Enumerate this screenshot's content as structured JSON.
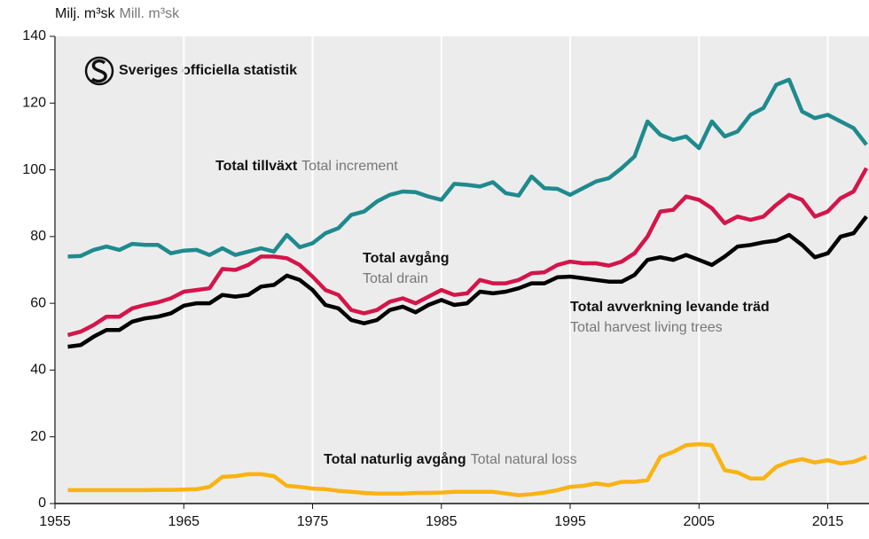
{
  "chart_data": {
    "type": "line",
    "unit_label": "Milj. m³sk",
    "unit_label_en": "Mill. m³sk",
    "logo": "Sveriges officiella statistik",
    "x": [
      1956,
      1957,
      1958,
      1959,
      1960,
      1961,
      1962,
      1963,
      1964,
      1965,
      1966,
      1967,
      1968,
      1969,
      1970,
      1971,
      1972,
      1973,
      1974,
      1975,
      1976,
      1977,
      1978,
      1979,
      1980,
      1981,
      1982,
      1983,
      1984,
      1985,
      1986,
      1987,
      1988,
      1989,
      1990,
      1991,
      1992,
      1993,
      1994,
      1995,
      1996,
      1997,
      1998,
      1999,
      2000,
      2001,
      2002,
      2003,
      2004,
      2005,
      2006,
      2007,
      2008,
      2009,
      2010,
      2011,
      2012,
      2013,
      2014,
      2015,
      2016,
      2017,
      2018
    ],
    "series": [
      {
        "name": "Total tillväxt",
        "name_en": "Total increment",
        "color": "#1f8a8e",
        "values": [
          74,
          74.2,
          76,
          77,
          76,
          77.8,
          77.5,
          77.5,
          75,
          75.8,
          76,
          74.5,
          76.5,
          74.5,
          75.5,
          76.5,
          75.5,
          80.5,
          76.8,
          78,
          81,
          82.5,
          86.5,
          87.5,
          90.5,
          92.5,
          93.5,
          93.3,
          92,
          91,
          95.8,
          95.5,
          95,
          96.3,
          93,
          92.3,
          98,
          94.5,
          94.3,
          92.5,
          94.5,
          96.5,
          97.5,
          100.5,
          104,
          114.5,
          110.5,
          109,
          110,
          106.5,
          114.5,
          110,
          111.5,
          116.5,
          118.5,
          125.5,
          127,
          117.5,
          115.5,
          116.5,
          114.5,
          112.5,
          107.5
        ]
      },
      {
        "name": "Total avgång",
        "name_en": "Total drain",
        "color": "#d4154a",
        "values": [
          50.5,
          51.5,
          53.5,
          56,
          56,
          58.5,
          59.5,
          60.3,
          61.5,
          63.5,
          64,
          64.5,
          70.3,
          70,
          71.5,
          74,
          74,
          73.5,
          71.5,
          68,
          64,
          62.5,
          58,
          57,
          58,
          60.5,
          61.5,
          60,
          62,
          64,
          62.5,
          63,
          67,
          66,
          66,
          67,
          69,
          69.3,
          71.5,
          72.5,
          72,
          72,
          71.3,
          72.5,
          75,
          80,
          87.5,
          88,
          92,
          91,
          88.5,
          84,
          86,
          85,
          86,
          89.5,
          92.5,
          91,
          86,
          87.5,
          91.5,
          93.5,
          100.5
        ]
      },
      {
        "name": "Total avverkning levande träd",
        "name_en": "Total harvest living trees",
        "color": "#000000",
        "values": [
          47,
          47.5,
          50,
          52,
          52,
          54.5,
          55.5,
          56,
          57,
          59.3,
          60,
          60,
          62.5,
          62,
          62.5,
          65,
          65.5,
          68.3,
          67,
          64,
          59.5,
          58.5,
          55,
          54,
          55,
          58,
          59,
          57.3,
          59.5,
          61,
          59.5,
          60,
          63.5,
          63,
          63.5,
          64.5,
          66,
          66,
          67.8,
          68,
          67.5,
          67,
          66.5,
          66.5,
          68.5,
          73,
          73.8,
          73,
          74.5,
          73,
          71.5,
          74,
          77,
          77.5,
          78.3,
          78.8,
          80.5,
          77.5,
          73.8,
          75,
          80,
          81,
          86
        ]
      },
      {
        "name": "Total naturlig avgång",
        "name_en": "Total natural loss",
        "color": "#f9b313",
        "values": [
          4,
          4,
          4,
          4,
          4,
          4,
          4,
          4.1,
          4.1,
          4.2,
          4.3,
          5,
          8,
          8.2,
          8.8,
          8.8,
          8.2,
          5.3,
          5,
          4.5,
          4.3,
          3.8,
          3.5,
          3.2,
          3,
          3,
          3,
          3.2,
          3.2,
          3.3,
          3.5,
          3.5,
          3.5,
          3.5,
          3,
          2.5,
          2.8,
          3.3,
          4,
          5,
          5.3,
          6,
          5.5,
          6.5,
          6.5,
          7,
          14,
          15.5,
          17.5,
          17.8,
          17.5,
          10,
          9.3,
          7.5,
          7.5,
          11,
          12.5,
          13.3,
          12.3,
          13,
          12,
          12.5,
          14
        ]
      }
    ],
    "xlim": [
      1955,
      2018.2
    ],
    "xticks": [
      1955,
      1965,
      1975,
      1985,
      1995,
      2005,
      2015
    ],
    "ylim": [
      0,
      140
    ],
    "yticks": [
      0,
      20,
      40,
      60,
      80,
      100,
      120,
      140
    ],
    "grid": "x"
  }
}
